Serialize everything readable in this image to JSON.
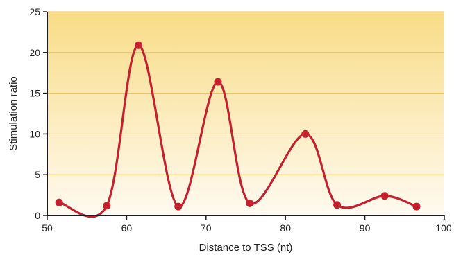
{
  "chart_data": {
    "type": "line",
    "title": "",
    "xlabel": "Distance to TSS (nt)",
    "ylabel": "Stimulation ratio",
    "xlim": [
      50,
      100
    ],
    "ylim": [
      0,
      25
    ],
    "x_ticks": [
      "50",
      "60",
      "70",
      "80",
      "90",
      "100"
    ],
    "y_ticks": [
      "0",
      "5",
      "10",
      "15",
      "20",
      "25"
    ],
    "grid": "horizontal",
    "series": [
      {
        "x": [
          51.5,
          57.5,
          61.5,
          66.5,
          71.5,
          75.5,
          82.5,
          86.5,
          92.5,
          96.5
        ],
        "y": [
          1.6,
          1.2,
          20.9,
          1.1,
          16.4,
          1.5,
          10.0,
          1.3,
          2.4,
          1.1
        ]
      }
    ],
    "colors": {
      "line": "#c4202e",
      "marker": "#c4202e",
      "background_top": "#f8dc86",
      "background_bottom": "#fffaf0",
      "grid": "#e7bd63"
    }
  }
}
